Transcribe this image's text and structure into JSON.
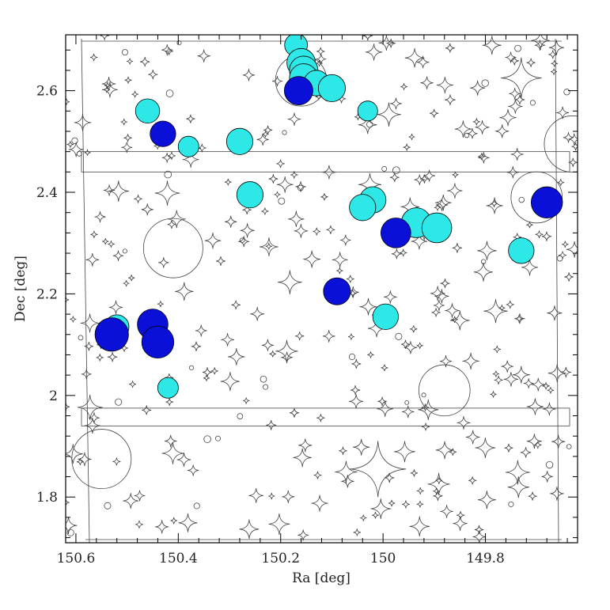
{
  "chart_data": {
    "type": "scatter",
    "xlabel": "Ra [deg]",
    "ylabel": "Dec [deg]",
    "xlim": [
      150.62,
      149.62
    ],
    "ylim": [
      1.71,
      2.71
    ],
    "x_ticks": [
      150.6,
      150.4,
      150.2,
      150.0,
      149.8
    ],
    "x_tick_labels": [
      "150.6",
      "150.4",
      "150.2",
      "150",
      "149.8"
    ],
    "y_ticks": [
      1.8,
      2.0,
      2.2,
      2.4,
      2.6
    ],
    "y_tick_labels": [
      "1.8",
      "2",
      "2.2",
      "2.4",
      "2.6"
    ],
    "grid": false,
    "colors": {
      "cyan": "#2ee8e8",
      "blue": "#0a10d8",
      "mask": "#444444"
    },
    "series": [
      {
        "color": "cyan",
        "points": [
          {
            "x": 150.17,
            "y": 2.69,
            "s": 0.6
          },
          {
            "x": 150.16,
            "y": 2.655,
            "s": 1.0
          },
          {
            "x": 150.155,
            "y": 2.64,
            "s": 1.0
          },
          {
            "x": 150.155,
            "y": 2.625,
            "s": 1.0
          },
          {
            "x": 150.13,
            "y": 2.615,
            "s": 0.8
          },
          {
            "x": 150.1,
            "y": 2.605,
            "s": 0.9
          },
          {
            "x": 150.46,
            "y": 2.56,
            "s": 0.7
          },
          {
            "x": 150.03,
            "y": 2.56,
            "s": 0.4
          },
          {
            "x": 150.38,
            "y": 2.49,
            "s": 0.45
          },
          {
            "x": 150.28,
            "y": 2.5,
            "s": 0.85
          },
          {
            "x": 150.26,
            "y": 2.395,
            "s": 0.85
          },
          {
            "x": 150.02,
            "y": 2.385,
            "s": 0.85
          },
          {
            "x": 150.04,
            "y": 2.37,
            "s": 0.85
          },
          {
            "x": 149.935,
            "y": 2.34,
            "s": 1.1
          },
          {
            "x": 149.895,
            "y": 2.33,
            "s": 1.1
          },
          {
            "x": 149.73,
            "y": 2.285,
            "s": 0.8
          },
          {
            "x": 149.995,
            "y": 2.155,
            "s": 0.8
          },
          {
            "x": 150.52,
            "y": 2.135,
            "s": 0.7
          },
          {
            "x": 150.42,
            "y": 2.015,
            "s": 0.45
          }
        ]
      },
      {
        "color": "blue",
        "points": [
          {
            "x": 150.165,
            "y": 2.6,
            "s": 1.0
          },
          {
            "x": 150.43,
            "y": 2.515,
            "s": 0.8
          },
          {
            "x": 149.68,
            "y": 2.38,
            "s": 1.2
          },
          {
            "x": 149.975,
            "y": 2.32,
            "s": 1.1
          },
          {
            "x": 150.09,
            "y": 2.205,
            "s": 0.9
          },
          {
            "x": 150.45,
            "y": 2.14,
            "s": 1.15
          },
          {
            "x": 150.53,
            "y": 2.12,
            "s": 1.35
          },
          {
            "x": 150.44,
            "y": 2.105,
            "s": 1.25
          }
        ]
      }
    ],
    "masked_regions": {
      "large_circles": [
        {
          "x": 150.16,
          "y": 2.62,
          "r": 0.05
        },
        {
          "x": 149.63,
          "y": 2.495,
          "r": 0.055
        },
        {
          "x": 149.7,
          "y": 2.39,
          "r": 0.05
        },
        {
          "x": 150.41,
          "y": 2.29,
          "r": 0.058
        },
        {
          "x": 149.88,
          "y": 2.01,
          "r": 0.05
        },
        {
          "x": 150.55,
          "y": 1.875,
          "r": 0.058
        }
      ],
      "bands": [
        {
          "y_top": 2.48,
          "y_bottom": 2.44
        },
        {
          "y_top": 1.975,
          "y_bottom": 1.94
        }
      ],
      "large_stars": [
        {
          "x": 149.73,
          "y": 2.625,
          "r": 0.04
        },
        {
          "x": 150.01,
          "y": 1.855,
          "r": 0.055
        }
      ],
      "star_count": 330,
      "small_circle_count": 40
    }
  }
}
